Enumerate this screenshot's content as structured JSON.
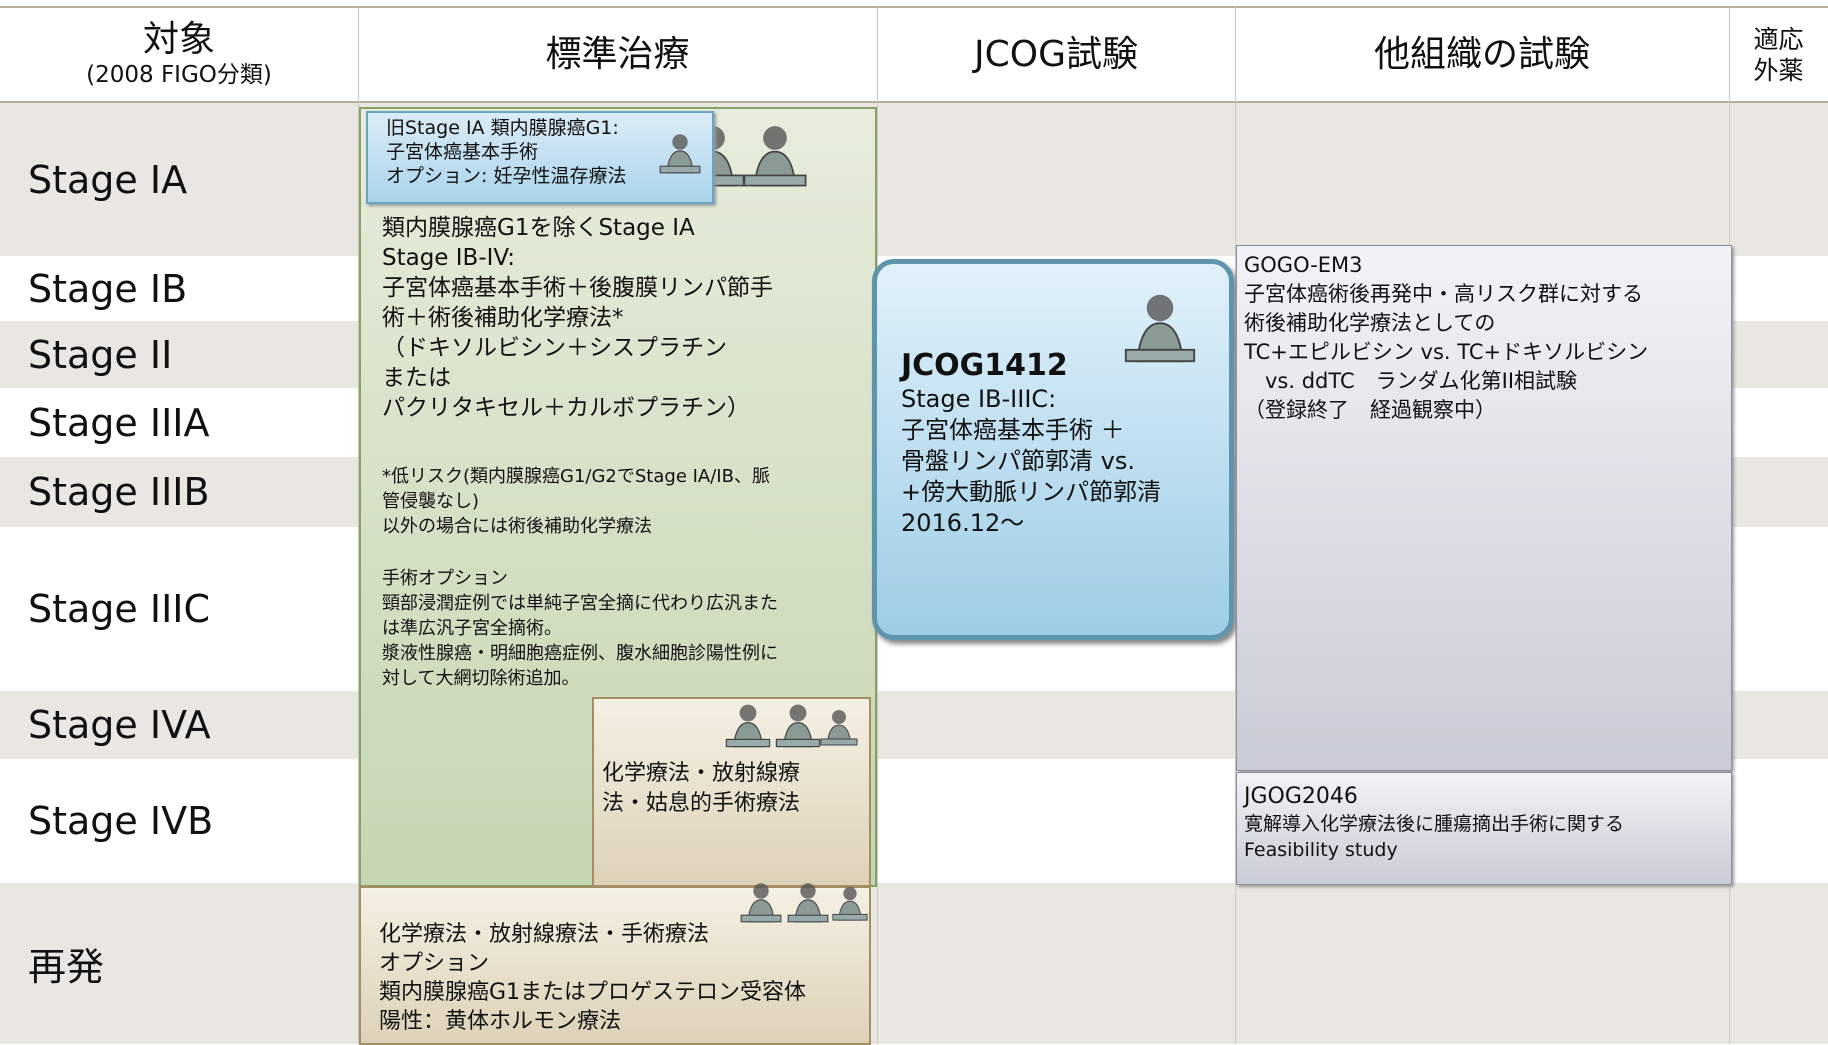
{
  "header": {
    "columns": [
      {
        "lines": [
          "対象",
          "(2008 FIGO分類)"
        ]
      },
      {
        "lines": [
          "標準治療"
        ]
      },
      {
        "lines": [
          "JCOG試験"
        ]
      },
      {
        "lines": [
          "他組織の試験"
        ]
      },
      {
        "lines": [
          "適応",
          "外薬"
        ]
      }
    ]
  },
  "rows": [
    "Stage IA",
    "Stage IB",
    "Stage II",
    "Stage IIIA",
    "Stage IIIB",
    "Stage IIIC",
    "Stage IVA",
    "Stage IVB",
    "再発"
  ],
  "boxes": {
    "standard": {
      "paragraphs": [
        [
          "類内膜腺癌G1を除くStage IA",
          "Stage IB-IV:",
          "子宮体癌基本手術＋後腹膜リンパ節手",
          "術＋術後補助化学療法*",
          "（ドキソルビシン＋シスプラチン",
          "または",
          "パクリタキセル＋カルボプラチン）"
        ],
        [
          "*低リスク(類内膜腺癌G1/G2でStage IA/IB、脈",
          "管侵襲なし)",
          "以外の場合には術後補助化学療法"
        ],
        [
          "手術オプション",
          "頸部浸潤症例では単純子宮全摘に代わり広汎また",
          "は準広汎子宮全摘術。",
          "漿液性腺癌・明細胞癌症例、腹水細胞診陽性例に",
          "対して大網切除術追加。"
        ]
      ]
    },
    "old_stage_ia": {
      "paragraphs": [
        [
          "旧Stage IA 類内膜腺癌G1:",
          "子宮体癌基本手術",
          "オプション: 妊孕性温存療法"
        ]
      ]
    },
    "advanced": {
      "paragraphs": [
        [
          "化学療法・放射線療",
          "法・姑息的手術療法"
        ]
      ]
    },
    "recurrence": {
      "paragraphs": [
        [
          "化学療法・放射線療法・手術療法",
          "オプション",
          "類内膜腺癌G1またはプロゲステロン受容体",
          "陽性：黄体ホルモン療法"
        ]
      ]
    },
    "jcog": {
      "paragraphs": [
        [
          "JCOG1412"
        ],
        [
          "Stage IB-IIIC:",
          "子宮体癌基本手術 ＋",
          "骨盤リンパ節郭清 vs.",
          "+傍大動脈リンパ節郭清",
          "2016.12〜"
        ]
      ]
    },
    "gogo": {
      "paragraphs": [
        [
          "GOGO-EM3",
          "子宮体癌術後再発中・高リスク群に対する",
          "術後補助化学療法としての",
          "TC+エピルビシン vs. TC+ドキソルビシン",
          "　vs. ddTC　ランダム化第II相試験",
          "（登録終了　経過観察中）"
        ]
      ]
    },
    "jgog": {
      "paragraphs": [
        [
          "JGOG2046"
        ],
        [
          "寛解導入化学療法後に腫瘍摘出手術に関する",
          "Feasibility study"
        ]
      ]
    }
  }
}
